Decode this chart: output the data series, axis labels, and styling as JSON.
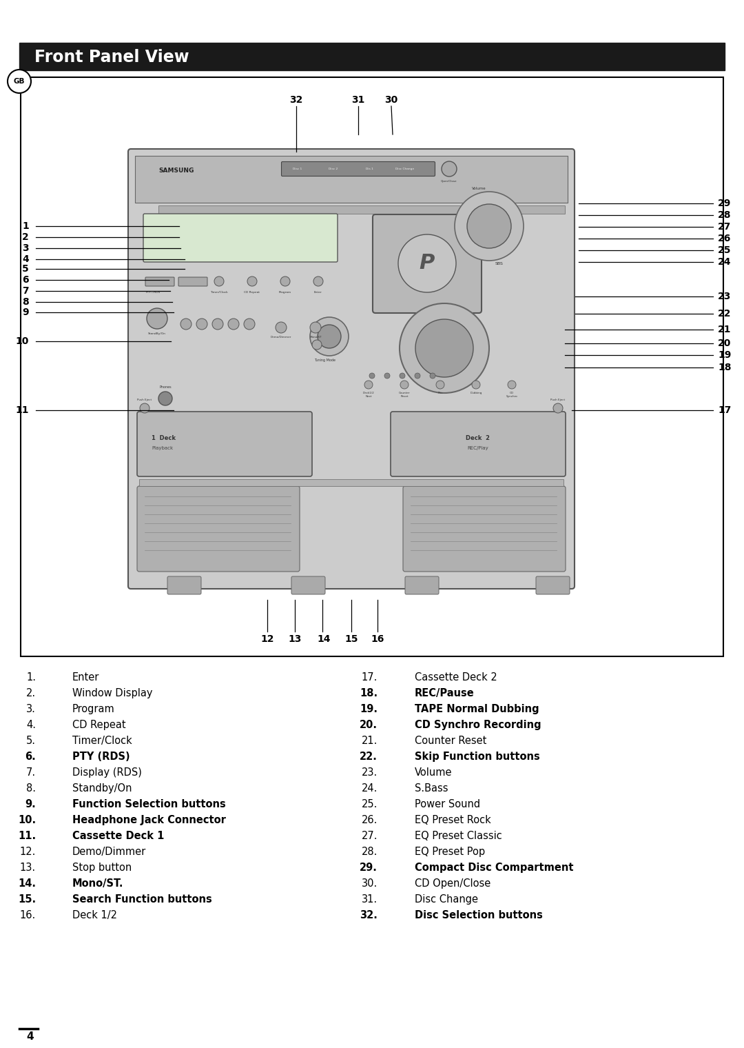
{
  "title": "Front Panel View",
  "title_bg": "#1a1a1a",
  "title_color": "#ffffff",
  "title_fontsize": 17,
  "page_bg": "#ffffff",
  "page_number": "4",
  "left_items": [
    {
      "num": "1.",
      "text": "Enter",
      "bold_num": false,
      "bold_text": false
    },
    {
      "num": "2.",
      "text": "Window Display",
      "bold_num": false,
      "bold_text": false
    },
    {
      "num": "3.",
      "text": "Program",
      "bold_num": false,
      "bold_text": false
    },
    {
      "num": "4.",
      "text": "CD Repeat",
      "bold_num": false,
      "bold_text": false
    },
    {
      "num": "5.",
      "text": "Timer/Clock",
      "bold_num": false,
      "bold_text": false
    },
    {
      "num": "6.",
      "text": "PTY (RDS)",
      "bold_num": true,
      "bold_text": true
    },
    {
      "num": "7.",
      "text": "Display (RDS)",
      "bold_num": false,
      "bold_text": false
    },
    {
      "num": "8.",
      "text": "Standby/On",
      "bold_num": false,
      "bold_text": false
    },
    {
      "num": "9.",
      "text": "Function Selection buttons",
      "bold_num": true,
      "bold_text": true
    },
    {
      "num": "10.",
      "text": "Headphone Jack Connector",
      "bold_num": true,
      "bold_text": true
    },
    {
      "num": "11.",
      "text": "Cassette Deck 1",
      "bold_num": true,
      "bold_text": true
    },
    {
      "num": "12.",
      "text": "Demo/Dimmer",
      "bold_num": false,
      "bold_text": false
    },
    {
      "num": "13.",
      "text": "Stop button",
      "bold_num": false,
      "bold_text": false
    },
    {
      "num": "14.",
      "text": "Mono/ST.",
      "bold_num": true,
      "bold_text": true
    },
    {
      "num": "15.",
      "text": "Search Function buttons",
      "bold_num": true,
      "bold_text": true
    },
    {
      "num": "16.",
      "text": "Deck 1/2",
      "bold_num": false,
      "bold_text": false
    }
  ],
  "right_items": [
    {
      "num": "17.",
      "text": "Cassette Deck 2",
      "bold_num": false,
      "bold_text": false
    },
    {
      "num": "18.",
      "text": "REC/Pause",
      "bold_num": true,
      "bold_text": true
    },
    {
      "num": "19.",
      "text": "TAPE Normal Dubbing",
      "bold_num": true,
      "bold_text": true
    },
    {
      "num": "20.",
      "text": "CD Synchro Recording",
      "bold_num": true,
      "bold_text": true
    },
    {
      "num": "21.",
      "text": "Counter Reset",
      "bold_num": false,
      "bold_text": false
    },
    {
      "num": "22.",
      "text": "Skip Function buttons",
      "bold_num": true,
      "bold_text": true
    },
    {
      "num": "23.",
      "text": "Volume",
      "bold_num": false,
      "bold_text": false
    },
    {
      "num": "24.",
      "text": "S.Bass",
      "bold_num": false,
      "bold_text": false
    },
    {
      "num": "25.",
      "text": "Power Sound",
      "bold_num": false,
      "bold_text": false
    },
    {
      "num": "26.",
      "text": "EQ Preset Rock",
      "bold_num": false,
      "bold_text": false
    },
    {
      "num": "27.",
      "text": "EQ Preset Classic",
      "bold_num": false,
      "bold_text": false
    },
    {
      "num": "28.",
      "text": "EQ Preset Pop",
      "bold_num": false,
      "bold_text": false
    },
    {
      "num": "29.",
      "text": "Compact Disc Compartment",
      "bold_num": true,
      "bold_text": true
    },
    {
      "num": "30.",
      "text": "CD Open/Close",
      "bold_num": false,
      "bold_text": false
    },
    {
      "num": "31.",
      "text": "Disc Change",
      "bold_num": false,
      "bold_text": false
    },
    {
      "num": "32.",
      "text": "Disc Selection buttons",
      "bold_num": true,
      "bold_text": true
    }
  ]
}
